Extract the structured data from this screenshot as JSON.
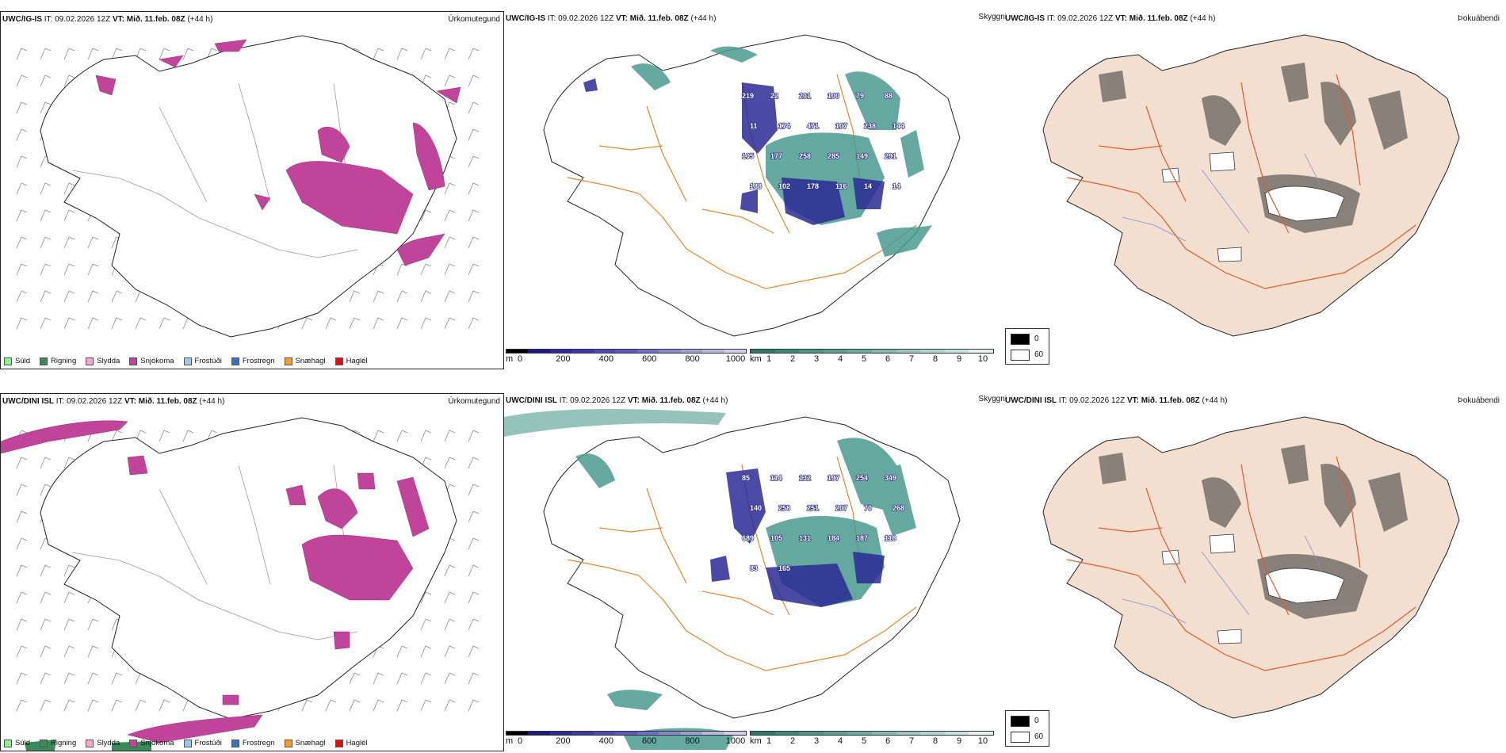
{
  "rows": [
    {
      "model": "UWC/IG-IS",
      "it_label": "IT:",
      "it_value": "09.02.2026 12Z",
      "vt_label": "VT:",
      "vt_value": "Mið. 11.feb. 08Z",
      "lead": "(+44 h)"
    },
    {
      "model": "UWC/DINI ISL",
      "it_label": "IT:",
      "it_value": "09.02.2026 12Z",
      "vt_label": "VT:",
      "vt_value": "Mið. 11.feb. 08Z",
      "lead": "(+44 h)"
    }
  ],
  "panel_titles": {
    "precip_type": "Úrkomutegund",
    "visibility": "Skyggni",
    "fog": "Þokuábendi"
  },
  "precip_legend": [
    {
      "label": "Súld",
      "color": "#90ee90"
    },
    {
      "label": "Rigning",
      "color": "#3a8a5a"
    },
    {
      "label": "Slydda",
      "color": "#f4a6d0"
    },
    {
      "label": "Snjókoma",
      "color": "#c0449a"
    },
    {
      "label": "Frostúði",
      "color": "#9cc8f0"
    },
    {
      "label": "Frostregn",
      "color": "#3a70c0"
    },
    {
      "label": "Snæhagl",
      "color": "#f0a030"
    },
    {
      "label": "Haglél",
      "color": "#e01010"
    }
  ],
  "colorbar_m": {
    "unit": "m",
    "ticks": [
      "0",
      "200",
      "400",
      "600",
      "800",
      "1000"
    ],
    "colors": [
      "#000000",
      "#1a1a80",
      "#2a2a9a",
      "#3a3aaa",
      "#4a4ab5",
      "#5a5abf",
      "#7070c8",
      "#8888d0",
      "#a0a0d8",
      "#b8b8e0",
      "#d0d0ea"
    ]
  },
  "colorbar_km": {
    "unit": "km",
    "ticks": [
      "1",
      "2",
      "3",
      "4",
      "5",
      "6",
      "7",
      "8",
      "9",
      "10"
    ],
    "colors": [
      "#2a7a70",
      "#3a8a80",
      "#4a968c",
      "#5aa298",
      "#6aaea4",
      "#80bab0",
      "#98c8c0",
      "#b0d6d0",
      "#c8e4e0",
      "#e6f2f0"
    ]
  },
  "fog_legend": {
    "top": "0",
    "bottom": "60",
    "top_color": "#000000",
    "bottom_color": "#ffffff"
  },
  "visibility_labels_row1": [
    "219",
    "22",
    "201",
    "100",
    "79",
    "88",
    "11",
    "174",
    "471",
    "107",
    "238",
    "144",
    "105",
    "177",
    "258",
    "285",
    "149",
    "291",
    "188",
    "102",
    "178",
    "116",
    "14",
    "14"
  ],
  "visibility_labels_row2": [
    "85",
    "114",
    "132",
    "197",
    "254",
    "349",
    "140",
    "258",
    "251",
    "207",
    "70",
    "268",
    "689",
    "105",
    "131",
    "184",
    "187",
    "118",
    "83",
    "165"
  ]
}
